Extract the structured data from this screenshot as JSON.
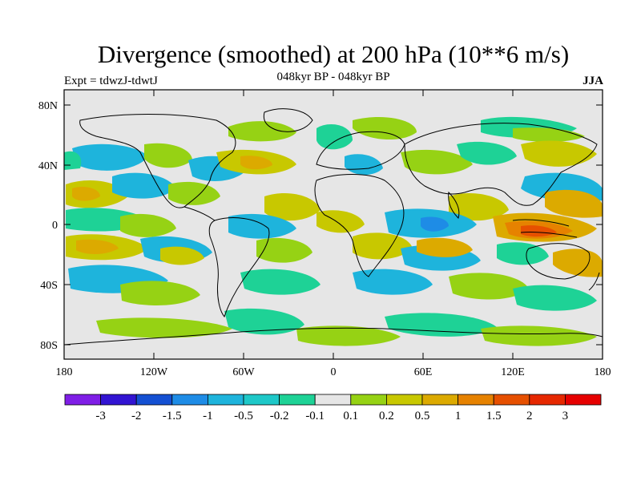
{
  "header": {
    "title": "Divergence (smoothed) at 200 hPa (10**6 m/s)",
    "subtitle": "048kyr BP - 048kyr BP",
    "experiment": "Expt = tdwzJ-tdwtJ",
    "season": "JJA"
  },
  "axes": {
    "y_ticks": [
      "80N",
      "40N",
      "0",
      "40S",
      "80S"
    ],
    "x_ticks": [
      "180",
      "120W",
      "60W",
      "0",
      "60E",
      "120E",
      "180"
    ]
  },
  "colorbar": {
    "labels": [
      "-3",
      "-2",
      "-1.5",
      "-1",
      "-0.5",
      "-0.2",
      "-0.1",
      "0.1",
      "0.2",
      "0.5",
      "1",
      "1.5",
      "2",
      "3"
    ],
    "colors": [
      "#7f1ee6",
      "#3214d2",
      "#1450d2",
      "#1e8ce6",
      "#1eb4dc",
      "#1ec8c8",
      "#1ed296",
      "#e6e6e6",
      "#96d214",
      "#c8c800",
      "#dcaa00",
      "#e68200",
      "#e65000",
      "#e62800",
      "#e60000"
    ]
  },
  "chart_data": {
    "type": "heatmap",
    "title": "Divergence (smoothed) at 200 hPa (10**6 m/s)",
    "subtitle": "048kyr BP - 048kyr BP",
    "levels": [
      -3,
      -2,
      -1.5,
      -1,
      -0.5,
      -0.2,
      -0.1,
      0.1,
      0.2,
      0.5,
      1,
      1.5,
      2,
      3
    ],
    "xlim": [
      -180,
      180
    ],
    "ylim": [
      -90,
      90
    ],
    "features": [
      {
        "region": "Western Pacific / Maritime Continent",
        "sign": "positive",
        "peak": 1.5
      },
      {
        "region": "Indian Ocean near equator",
        "sign": "negative",
        "peak": -1
      },
      {
        "region": "Tropical Pacific bands",
        "sign": "mixed",
        "peak": 0.5
      },
      {
        "region": "Southern Ocean",
        "sign": "mixed",
        "peak": 0.5
      }
    ]
  }
}
